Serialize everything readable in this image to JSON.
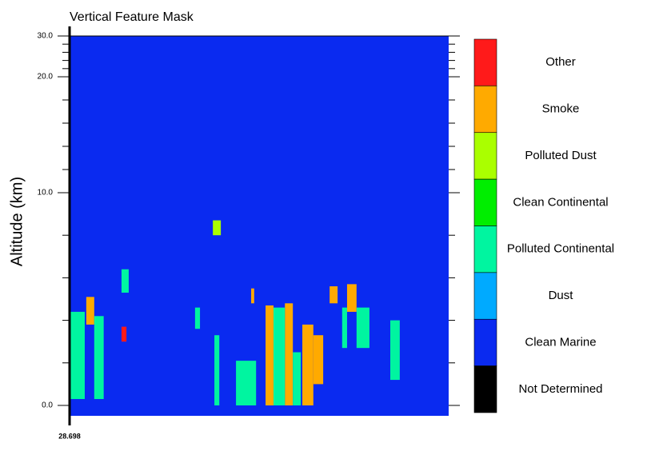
{
  "chart_data": {
    "type": "feature-mask",
    "title": "Vertical Feature Mask",
    "y_label": "Altitude (km)",
    "xticklabels": [
      "28.698"
    ],
    "ylim": [
      -0.5,
      30
    ],
    "yticks": [
      {
        "value": 0,
        "label": "0.0"
      },
      {
        "value": 10,
        "label": "10.0"
      },
      {
        "value": 20,
        "label": "20.0"
      },
      {
        "value": 30,
        "label": "30.0"
      }
    ],
    "yminorticks": [
      2,
      4,
      6,
      8,
      12,
      14,
      16,
      18,
      22,
      24,
      26,
      28
    ],
    "xlim": [
      0,
      100
    ],
    "background_class": "Clean Marine",
    "series": [
      {
        "name": "Other",
        "color": "#ff1a1a",
        "features": [
          [
            13.7,
            15,
            3,
            3.7
          ]
        ]
      },
      {
        "name": "Smoke",
        "color": "#ffaa00",
        "features": [
          [
            4.4,
            6.5,
            3.8,
            5.1
          ],
          [
            47.9,
            48.7,
            4.8,
            5.5
          ],
          [
            51.7,
            53.8,
            0,
            4.7
          ],
          [
            56.8,
            58.9,
            0,
            4.8
          ],
          [
            61.4,
            64.3,
            0,
            3.8
          ],
          [
            64.3,
            66.9,
            1,
            3.3
          ],
          [
            68.6,
            70.7,
            4.8,
            5.6
          ],
          [
            73.2,
            75.7,
            4.4,
            5.7
          ]
        ]
      },
      {
        "name": "Polluted Dust",
        "color": "#aaff00",
        "features": [
          [
            37.8,
            39.9,
            8.0,
            8.7
          ]
        ]
      },
      {
        "name": "Clean Continental",
        "color": "#00ee00",
        "features": []
      },
      {
        "name": "Polluted Continental",
        "color": "#00f5a0",
        "features": [
          [
            0,
            4,
            0.3,
            4.4
          ],
          [
            6.5,
            9,
            0.3,
            4.2
          ],
          [
            13.7,
            15.6,
            5.3,
            6.4
          ],
          [
            33.1,
            34.4,
            3.6,
            4.6
          ],
          [
            38.2,
            39.5,
            0,
            3.3
          ],
          [
            43.9,
            49.2,
            0,
            2.1
          ],
          [
            53.8,
            56.8,
            0,
            4.6
          ],
          [
            58.9,
            61,
            0,
            2.5
          ],
          [
            71.9,
            73.2,
            2.7,
            4.6
          ],
          [
            75.7,
            79.1,
            2.7,
            4.6
          ],
          [
            84.6,
            87.1,
            1.2,
            4
          ]
        ]
      },
      {
        "name": "Dust",
        "color": "#00aaff",
        "features": []
      },
      {
        "name": "Clean Marine",
        "color": "#0a2af0",
        "features": []
      },
      {
        "name": "Not Determined",
        "color": "#000000",
        "features": []
      }
    ]
  }
}
